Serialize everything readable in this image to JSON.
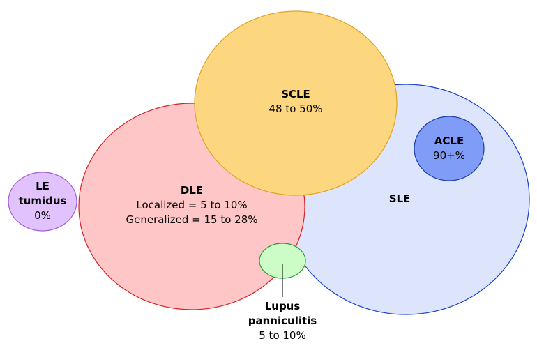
{
  "diagram": {
    "sets": [
      {
        "id": "sle",
        "title": "SLE",
        "lines": [],
        "fill": "#dde5fc",
        "stroke": "#1a3fd1"
      },
      {
        "id": "dle",
        "title": "DLE",
        "lines": [
          "Localized = 5 to 10%",
          "Generalized = 15 to 28%"
        ],
        "fill": "#fec6c6",
        "stroke": "#d91f26"
      },
      {
        "id": "scle",
        "title": "SCLE",
        "lines": [
          "48 to 50%"
        ],
        "fill": "#fdd680",
        "stroke": "#e2a21e"
      },
      {
        "id": "acle",
        "title": "ACLE",
        "lines": [
          "90+%"
        ],
        "fill": "#7f9cf7",
        "stroke": "#1c3aa8"
      },
      {
        "id": "le_tumidus",
        "title_lines": [
          "LE",
          "tumidus"
        ],
        "lines": [
          "0%"
        ],
        "fill": "#e1c2fc",
        "stroke": "#a05ad6"
      },
      {
        "id": "lupus_panniculitis",
        "title_lines": [
          "Lupus",
          "panniculitis"
        ],
        "lines": [
          "5 to 10%"
        ],
        "fill": "#ccfdc6",
        "stroke": "#2e9a33"
      }
    ]
  }
}
